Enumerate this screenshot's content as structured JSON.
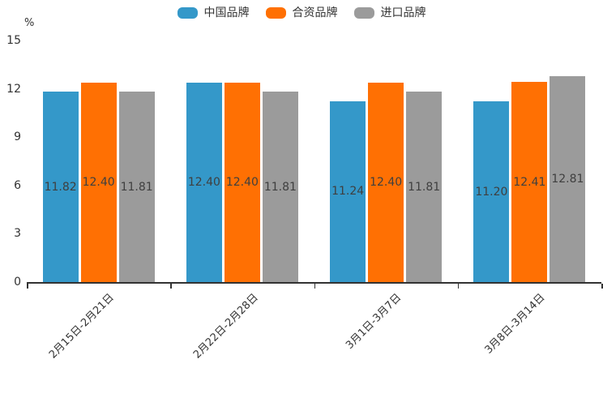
{
  "chart_data": {
    "type": "bar",
    "title": "",
    "xlabel": "",
    "ylabel": "%",
    "ylim": [
      0,
      15
    ],
    "yticks": [
      0,
      3,
      6,
      9,
      12,
      15
    ],
    "grid": false,
    "legend_position": "top",
    "categories": [
      "2月15日-2月21日",
      "2月22日-2月28日",
      "3月1日-3月7日",
      "3月8日-3月14日"
    ],
    "series": [
      {
        "name": "中国品牌",
        "color": "#3498c9",
        "values": [
          11.82,
          12.4,
          11.24,
          11.2
        ]
      },
      {
        "name": "合资品牌",
        "color": "#ff7003",
        "values": [
          12.4,
          12.4,
          12.4,
          12.41
        ]
      },
      {
        "name": "进口品牌",
        "color": "#9b9b9b",
        "values": [
          11.81,
          11.81,
          11.81,
          12.81
        ]
      }
    ],
    "value_label_decimals": 2,
    "colors": {
      "axis": "#333333",
      "tick_text": "#333333",
      "value_label_text": "#3f3f3f"
    }
  }
}
